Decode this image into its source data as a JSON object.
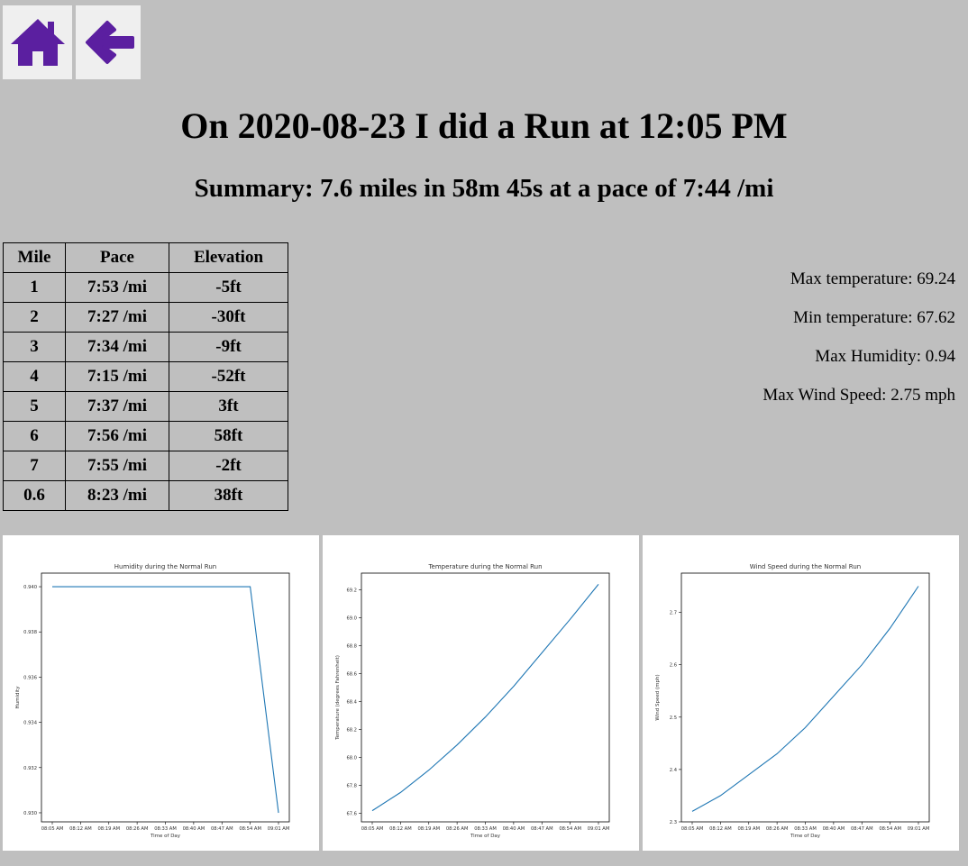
{
  "nav": {
    "home_icon": "home-icon",
    "back_icon": "arrow-left-icon",
    "icon_color": "#5b1fa0"
  },
  "header": {
    "title": "On 2020-08-23 I did a Run at 12:05 PM",
    "summary": "Summary: 7.6 miles in 58m 45s at a pace of 7:44 /mi"
  },
  "splits": {
    "headers": [
      "Mile",
      "Pace",
      "Elevation"
    ],
    "rows": [
      [
        "1",
        "7:53 /mi",
        "-5ft"
      ],
      [
        "2",
        "7:27 /mi",
        "-30ft"
      ],
      [
        "3",
        "7:34 /mi",
        "-9ft"
      ],
      [
        "4",
        "7:15 /mi",
        "-52ft"
      ],
      [
        "5",
        "7:37 /mi",
        "3ft"
      ],
      [
        "6",
        "7:56 /mi",
        "58ft"
      ],
      [
        "7",
        "7:55 /mi",
        "-2ft"
      ],
      [
        "0.6",
        "8:23 /mi",
        "38ft"
      ]
    ]
  },
  "stats": {
    "max_temp": "Max temperature: 69.24",
    "min_temp": "Min temperature: 67.62",
    "max_humidity": "Max Humidity: 0.94",
    "max_wind": "Max Wind Speed: 2.75 mph"
  },
  "chart_data": [
    {
      "type": "line",
      "title": "Humidity during the Normal Run",
      "xlabel": "Time of Day",
      "ylabel": "Humidity",
      "x": [
        "08:05 AM",
        "08:12 AM",
        "08:19 AM",
        "08:26 AM",
        "08:33 AM",
        "08:40 AM",
        "08:47 AM",
        "08:54 AM",
        "09:01 AM"
      ],
      "y": [
        0.94,
        0.94,
        0.94,
        0.94,
        0.94,
        0.94,
        0.94,
        0.94,
        0.93
      ],
      "yticks": [
        "0.930",
        "0.932",
        "0.934",
        "0.936",
        "0.938",
        "0.940"
      ],
      "ylim": [
        0.9296,
        0.9406
      ],
      "color": "#1f77b4",
      "grid": false
    },
    {
      "type": "line",
      "title": "Temperature during the Normal Run",
      "xlabel": "Time of Day",
      "ylabel": "Temperature (degrees Fahrenheit)",
      "x": [
        "08:05 AM",
        "08:12 AM",
        "08:19 AM",
        "08:26 AM",
        "08:33 AM",
        "08:40 AM",
        "08:47 AM",
        "08:54 AM",
        "09:01 AM"
      ],
      "y": [
        67.62,
        67.75,
        67.91,
        68.09,
        68.29,
        68.51,
        68.75,
        68.99,
        69.24
      ],
      "yticks": [
        "67.6",
        "67.8",
        "68.0",
        "68.2",
        "68.4",
        "68.6",
        "68.8",
        "69.0",
        "69.2"
      ],
      "ylim": [
        67.54,
        69.32
      ],
      "color": "#1f77b4",
      "grid": false
    },
    {
      "type": "line",
      "title": "Wind Speed during the Normal Run",
      "xlabel": "Time of Day",
      "ylabel": "Wind Speed (mph)",
      "x": [
        "08:05 AM",
        "08:12 AM",
        "08:19 AM",
        "08:26 AM",
        "08:33 AM",
        "08:40 AM",
        "08:47 AM",
        "08:54 AM",
        "09:01 AM"
      ],
      "y": [
        2.32,
        2.35,
        2.39,
        2.43,
        2.48,
        2.54,
        2.6,
        2.67,
        2.75
      ],
      "yticks": [
        "2.3",
        "2.4",
        "2.5",
        "2.6",
        "2.7"
      ],
      "ylim": [
        2.3,
        2.775
      ],
      "color": "#1f77b4",
      "grid": false
    }
  ]
}
